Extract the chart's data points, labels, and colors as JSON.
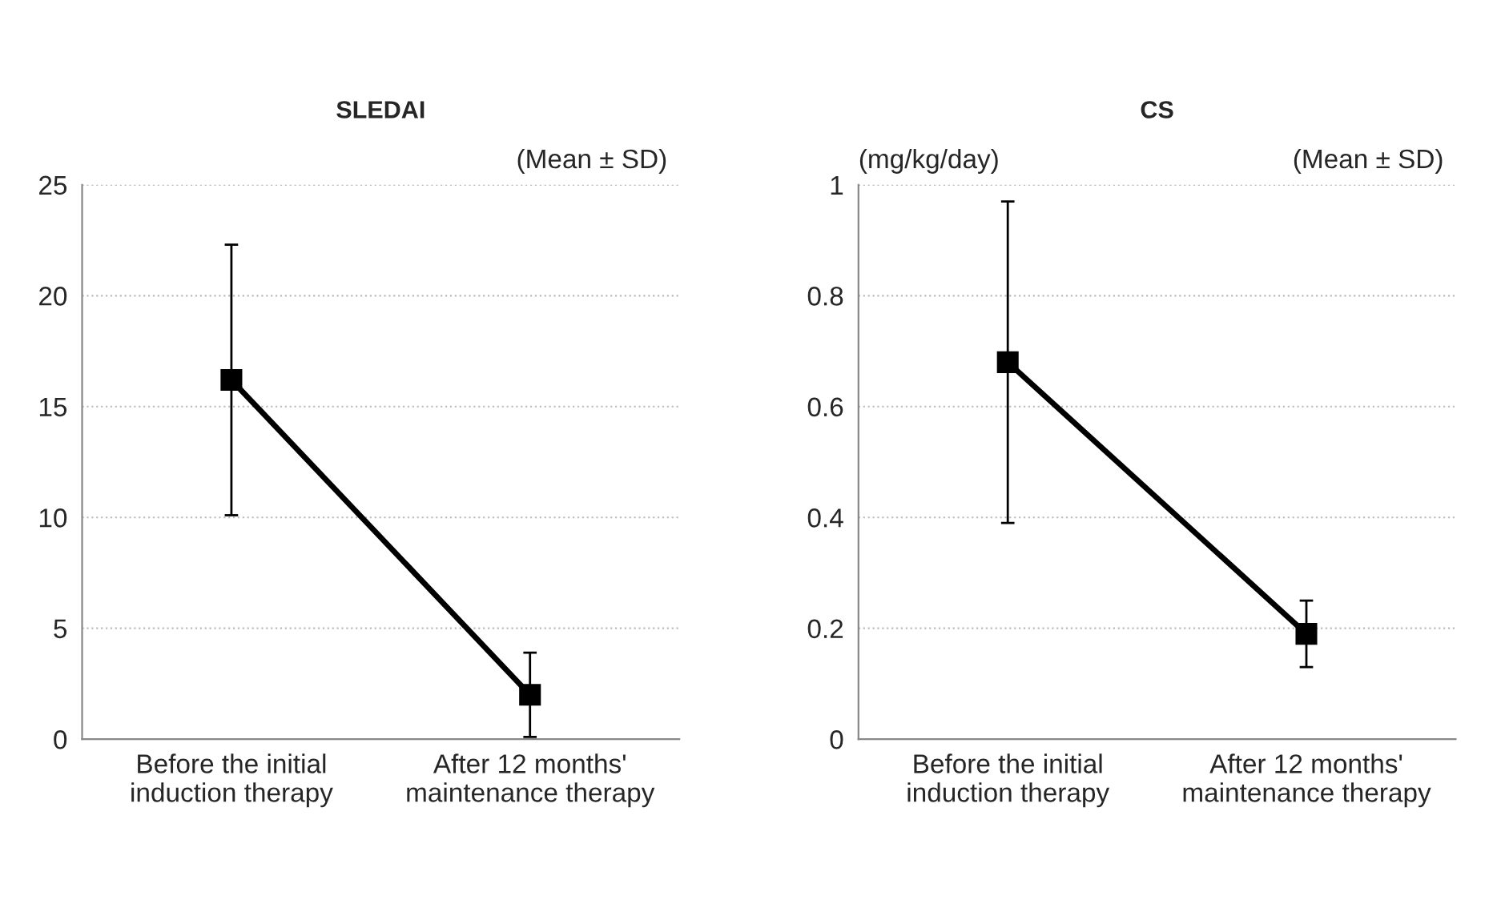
{
  "chart_data": [
    {
      "type": "line",
      "title": "SLEDAI",
      "annotations": [
        "(Mean ± SD)"
      ],
      "categories": [
        "Before the initial induction therapy",
        "After 12 months' maintenance therapy"
      ],
      "series": [
        {
          "color": "#000000",
          "values": [
            16.2,
            2.0
          ],
          "errors": [
            [
              10.1,
              22.3
            ],
            [
              0.1,
              3.9
            ]
          ]
        }
      ],
      "ylim": [
        0,
        25
      ],
      "yticks": [
        0,
        5,
        10,
        15,
        20,
        25
      ],
      "grid": "y",
      "marker": "square",
      "line_style": "solid",
      "legend": false
    },
    {
      "type": "line",
      "title": "CS",
      "ylabel": "(mg/kg/day)",
      "annotations": [
        "(Mean ± SD)"
      ],
      "categories": [
        "Before the initial induction therapy",
        "After 12 months' maintenance therapy"
      ],
      "series": [
        {
          "color": "#000000",
          "values": [
            0.68,
            0.19
          ],
          "errors": [
            [
              0.39,
              0.97
            ],
            [
              0.13,
              0.25
            ]
          ]
        }
      ],
      "ylim": [
        0,
        1
      ],
      "yticks": [
        0,
        {
          "value": 0.2,
          "label": "0.2"
        },
        {
          "value": 0.4,
          "label": "0.4"
        },
        {
          "value": 0.6,
          "label": "0.6"
        },
        {
          "value": 0.8,
          "label": "0.8"
        },
        1
      ],
      "grid": "y",
      "marker": "square",
      "line_style": "solid",
      "legend": false
    }
  ]
}
